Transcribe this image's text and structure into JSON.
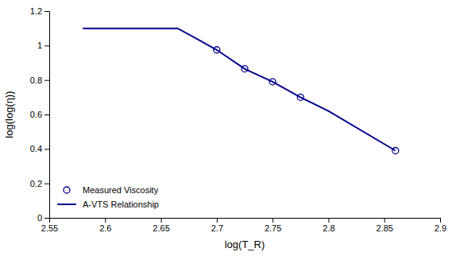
{
  "chart_data": {
    "type": "line",
    "xlabel": "log(T_R)",
    "ylabel": "log(log(η))",
    "series": [
      {
        "name": "Measured Viscosity",
        "type": "scatter",
        "color": "#00008B",
        "marker": "circle",
        "x": [
          2.7,
          2.725,
          2.75,
          2.775,
          2.86
        ],
        "values": [
          0.975,
          0.865,
          0.79,
          0.7,
          0.39
        ]
      },
      {
        "name": "A-VTS Relationship",
        "type": "line",
        "color": "#00008B",
        "line_style": "solid",
        "x": [
          2.58,
          2.665,
          2.7,
          2.725,
          2.75,
          2.775,
          2.8,
          2.86
        ],
        "values": [
          1.1,
          1.1,
          0.975,
          0.865,
          0.79,
          0.7,
          0.62,
          0.39
        ]
      }
    ],
    "xlim": [
      2.55,
      2.9
    ],
    "ylim": [
      0,
      1.2
    ],
    "xticks": [
      2.55,
      2.6,
      2.65,
      2.7,
      2.75,
      2.8,
      2.85,
      2.9
    ],
    "yticks": [
      0,
      0.2,
      0.4,
      0.6,
      0.8,
      1,
      1.2
    ],
    "grid": false,
    "legend": "lower left"
  }
}
